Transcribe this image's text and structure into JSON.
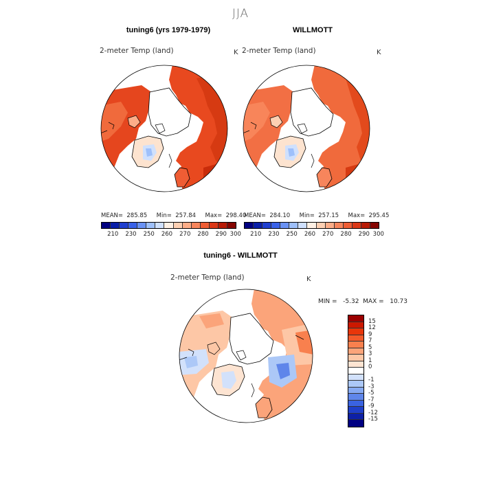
{
  "figure": {
    "title": "JJA"
  },
  "panels": [
    {
      "title": "tuning6 (yrs 1979-1979)",
      "variable": "2-meter Temp (land)",
      "units": "K",
      "stats": "MEAN=  285.85     Min=  257.84     Max=  298.40"
    },
    {
      "title": "WILLMOTT",
      "variable": "2-meter Temp (land)",
      "units": "K",
      "stats": "MEAN=  284.10     Min=  257.15     Max=  295.45"
    }
  ],
  "abs_colorbar": {
    "colors": [
      "#000080",
      "#0a1fa8",
      "#1f3fd0",
      "#3a62e8",
      "#6a92f4",
      "#9ec0fb",
      "#cfe0fd",
      "#fef0e4",
      "#fdd0b3",
      "#fcad88",
      "#f7855c",
      "#ef5d34",
      "#db3817",
      "#b81b06",
      "#850500"
    ],
    "ticks": [
      "210",
      "230",
      "250",
      "260",
      "270",
      "280",
      "290",
      "300"
    ]
  },
  "diff": {
    "title": "tuning6 - WILLMOTT",
    "variable": "2-meter Temp (land)",
    "units": "K",
    "stats": "MIN =   -5.32  MAX =   10.73",
    "colors": [
      "#9b0000",
      "#cc1800",
      "#e8360a",
      "#f35a2a",
      "#f8804e",
      "#fba47a",
      "#fdc7a6",
      "#fde4d2",
      "#ffffff",
      "#d2e1fb",
      "#acc8f7",
      "#87aaf2",
      "#5f86ea",
      "#3a63e1",
      "#1f3fc9",
      "#0d20a6",
      "#000082"
    ],
    "ticks": [
      "15",
      "12",
      "9",
      "7",
      "5",
      "3",
      "1",
      "0",
      "-1",
      "-3",
      "-5",
      "-7",
      "-9",
      "-12",
      "-15"
    ]
  }
}
